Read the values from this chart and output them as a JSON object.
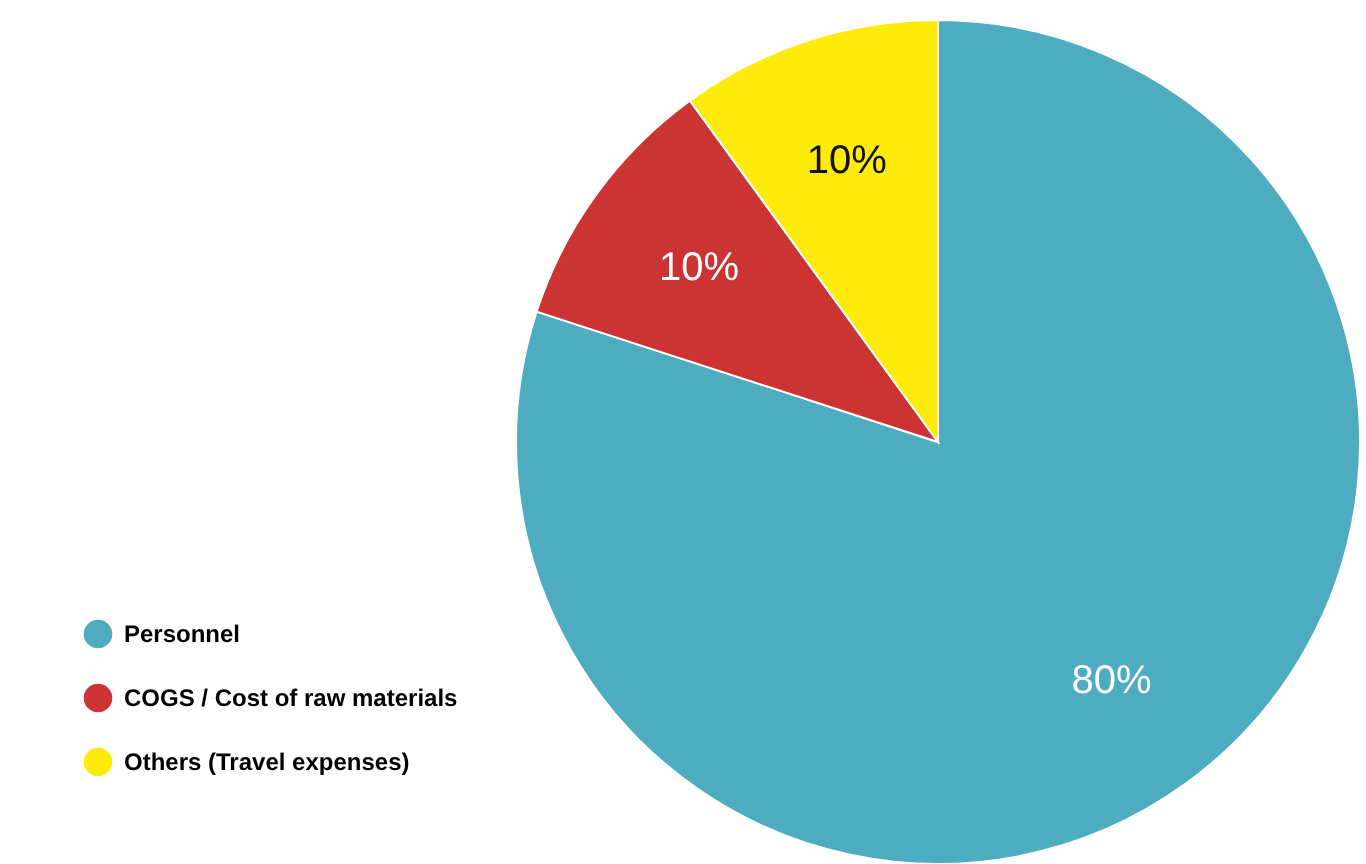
{
  "chart_data": {
    "type": "pie",
    "categories": [
      "Personnel",
      "COGS / Cost of raw materials",
      "Others (Travel expenses)"
    ],
    "values": [
      80,
      10,
      10
    ],
    "colors": [
      "#4eacc1",
      "#cc3333",
      "#ffeb0a"
    ],
    "value_labels": [
      "80%",
      "10%",
      "10%"
    ],
    "legend": "bottom left"
  }
}
